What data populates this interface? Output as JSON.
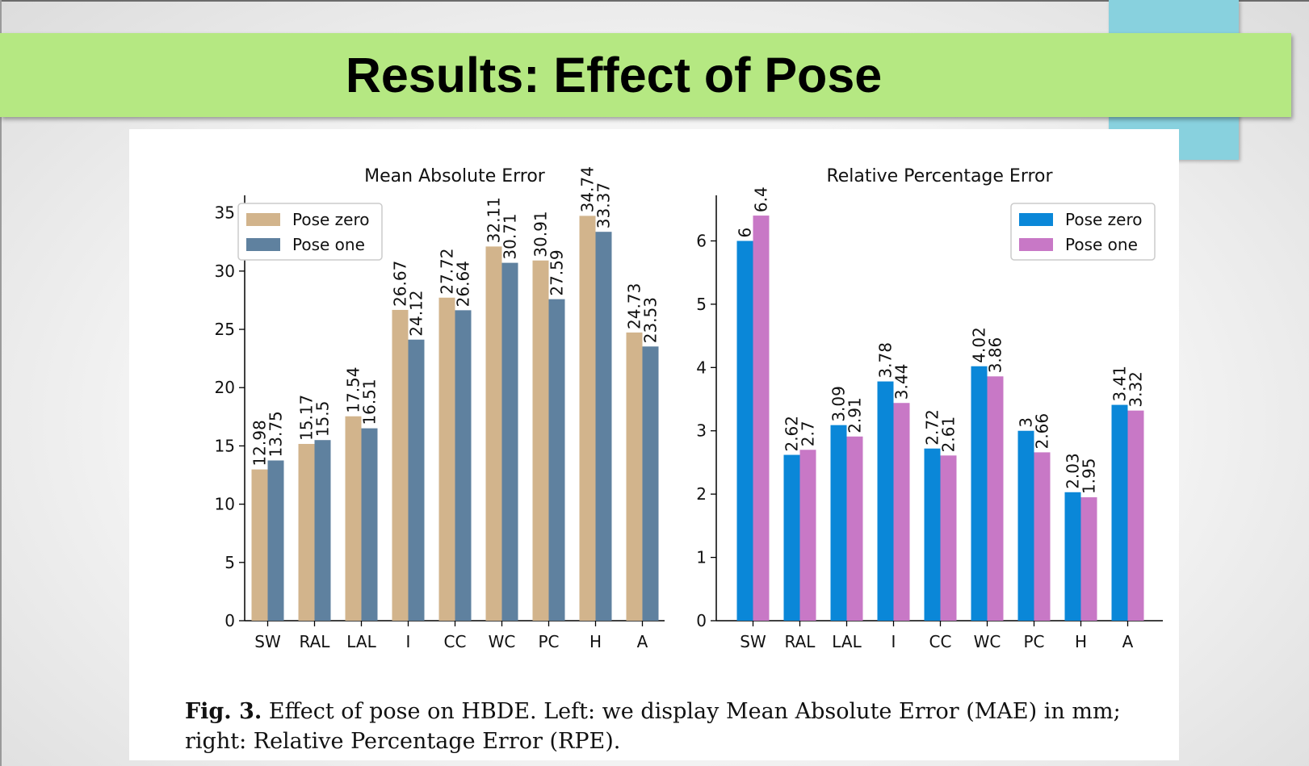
{
  "slide": {
    "title": "Results: Effect of Pose",
    "caption_label": "Fig. 3.",
    "caption_text": " Effect of pose on HBDE. Left: we display Mean Absolute Error (MAE) in mm; right: Relative Percentage Error (RPE)."
  },
  "colors": {
    "banner": "#b5e882",
    "accent_cyan": "#88d1de"
  },
  "chart_data": [
    {
      "type": "bar",
      "title": "Mean Absolute Error",
      "xlabel": "",
      "ylabel": "",
      "categories": [
        "SW",
        "RAL",
        "LAL",
        "I",
        "CC",
        "WC",
        "PC",
        "H",
        "A"
      ],
      "ylim": [
        0,
        36.5
      ],
      "yticks": [
        0,
        5,
        10,
        15,
        20,
        25,
        30,
        35
      ],
      "legend_position": "top-left",
      "series": [
        {
          "name": "Pose zero",
          "color": "#d2b48c",
          "values": [
            12.98,
            15.17,
            17.54,
            26.67,
            27.72,
            32.11,
            30.91,
            34.74,
            24.73
          ],
          "labels": [
            "12.98",
            "15.17",
            "17.54",
            "26.67",
            "27.72",
            "32.11",
            "30.91",
            "34.74",
            "24.73"
          ]
        },
        {
          "name": "Pose one",
          "color": "#5f819f",
          "values": [
            13.75,
            15.5,
            16.51,
            24.12,
            26.64,
            30.71,
            27.59,
            33.37,
            23.53
          ],
          "labels": [
            "13.75",
            "15.5",
            "16.51",
            "24.12",
            "26.64",
            "30.71",
            "27.59",
            "33.37",
            "23.53"
          ]
        }
      ]
    },
    {
      "type": "bar",
      "title": "Relative Percentage Error",
      "xlabel": "",
      "ylabel": "",
      "categories": [
        "SW",
        "RAL",
        "LAL",
        "I",
        "CC",
        "WC",
        "PC",
        "H",
        "A"
      ],
      "ylim": [
        0,
        6.72
      ],
      "yticks": [
        0,
        1,
        2,
        3,
        4,
        5,
        6
      ],
      "legend_position": "top-right",
      "series": [
        {
          "name": "Pose zero",
          "color": "#0a87d8",
          "values": [
            6,
            2.62,
            3.09,
            3.78,
            2.72,
            4.02,
            3,
            2.03,
            3.41
          ],
          "labels": [
            "6",
            "2.62",
            "3.09",
            "3.78",
            "2.72",
            "4.02",
            "3",
            "2.03",
            "3.41"
          ]
        },
        {
          "name": "Pose one",
          "color": "#c878c6",
          "values": [
            6.4,
            2.7,
            2.91,
            3.44,
            2.61,
            3.86,
            2.66,
            1.95,
            3.32
          ],
          "labels": [
            "6.4",
            "2.7",
            "2.91",
            "3.44",
            "2.61",
            "3.86",
            "2.66",
            "1.95",
            "3.32"
          ]
        }
      ]
    }
  ]
}
